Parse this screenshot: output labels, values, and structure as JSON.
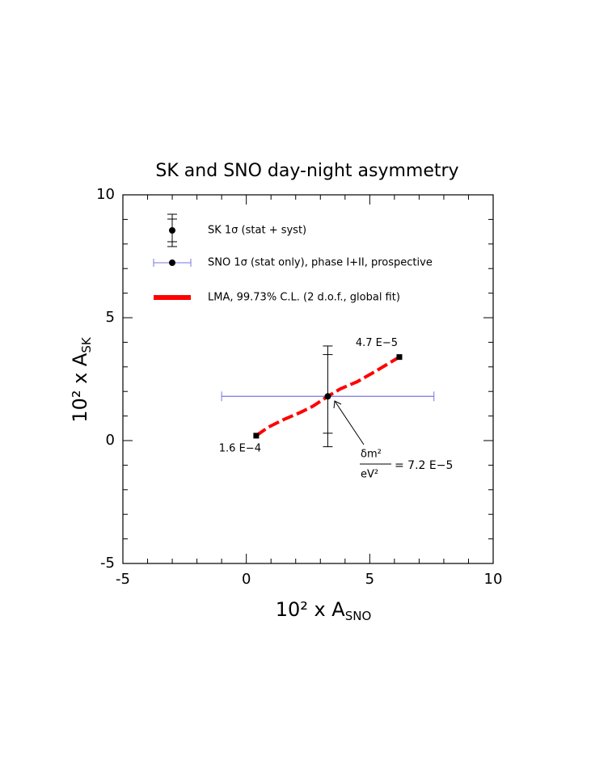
{
  "chart_data": {
    "type": "scatter",
    "title": "SK and SNO day-night asymmetry",
    "xlabel": {
      "main": "10² x A",
      "sub": "SNO"
    },
    "ylabel": {
      "main": "10² x A",
      "sub": "SK"
    },
    "xlim": [
      -5,
      10
    ],
    "ylim": [
      -5,
      10
    ],
    "xticks": [
      -5,
      0,
      5,
      10
    ],
    "yticks": [
      -5,
      0,
      5,
      10
    ],
    "xticks_minor": [
      -4,
      -3,
      -2,
      -1,
      1,
      2,
      3,
      4,
      6,
      7,
      8,
      9
    ],
    "yticks_minor": [
      -4,
      -3,
      -2,
      -1,
      1,
      2,
      3,
      4,
      6,
      7,
      8,
      9
    ],
    "legend": [
      "SK  1σ (stat + syst)",
      "SNO  1σ (stat only),  phase I+II,  prospective",
      "LMA,  99.73% C.L.  (2 d.o.f.,  global fit)"
    ],
    "sk": {
      "x": 3.3,
      "y": 1.8,
      "y_low": -0.25,
      "y_high": 3.85,
      "y_stat_low": 0.3,
      "y_stat_high": 3.5,
      "color": "#000000"
    },
    "sno": {
      "x": 3.3,
      "y": 1.8,
      "x_low": -1.0,
      "x_high": 7.6,
      "color": "#7777dd"
    },
    "lma": {
      "color": "#ff0000",
      "x": [
        0.4,
        0.9,
        1.5,
        2.2,
        2.7,
        3.3,
        3.8,
        4.5,
        5.2,
        6.2
      ],
      "y": [
        0.2,
        0.55,
        0.85,
        1.15,
        1.4,
        1.8,
        2.1,
        2.4,
        2.8,
        3.4
      ]
    },
    "endpoints": [
      {
        "x": 0.4,
        "y": 0.2,
        "label": "1.6 E−4"
      },
      {
        "x": 6.2,
        "y": 3.4,
        "label": "4.7 E−5"
      }
    ],
    "annotation": {
      "numerator": "δm²",
      "denominator": "eV²",
      "text": "= 7.2 E−5"
    }
  }
}
